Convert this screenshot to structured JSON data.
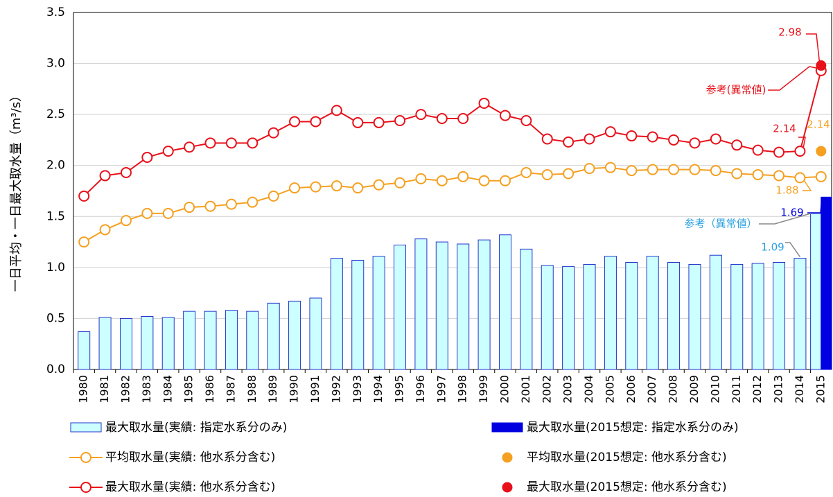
{
  "chart_data": {
    "type": "combo",
    "y_label": "一日平均・一日最大取水量（m³/s）",
    "categories": [
      "1980",
      "1981",
      "1982",
      "1983",
      "1984",
      "1985",
      "1986",
      "1987",
      "1988",
      "1989",
      "1990",
      "1991",
      "1992",
      "1993",
      "1994",
      "1995",
      "1996",
      "1997",
      "1998",
      "1999",
      "2000",
      "2001",
      "2002",
      "2003",
      "2004",
      "2005",
      "2006",
      "2007",
      "2008",
      "2009",
      "2010",
      "2011",
      "2012",
      "2013",
      "2014",
      "2015"
    ],
    "ylim": [
      0,
      3.5
    ],
    "yticks": [
      {
        "value": 0,
        "label": "0.0"
      },
      0.5,
      {
        "value": 1,
        "label": "1.0"
      },
      1.5,
      {
        "value": 2,
        "label": "2.0"
      },
      2.5,
      {
        "value": 3,
        "label": "3.0"
      },
      3.5
    ],
    "grid": true,
    "series": [
      {
        "name": "最大取水量(実績: 指定水系分のみ)",
        "type": "bar",
        "color": "#ccffff",
        "stroke": "#2233cc",
        "values": [
          0.37,
          0.51,
          0.5,
          0.52,
          0.51,
          0.57,
          0.57,
          0.58,
          0.57,
          0.65,
          0.67,
          0.7,
          1.09,
          1.07,
          1.11,
          1.22,
          1.28,
          1.25,
          1.23,
          1.27,
          1.32,
          1.18,
          1.02,
          1.01,
          1.03,
          1.11,
          1.05,
          1.11,
          1.05,
          1.03,
          1.12,
          1.03,
          1.04,
          1.05,
          1.09,
          1.53
        ]
      },
      {
        "name": "最大取水量(2015想定: 指定水系分のみ)",
        "type": "bar",
        "color": "#0000e0",
        "stroke": "#0000e0",
        "values": [
          null,
          null,
          null,
          null,
          null,
          null,
          null,
          null,
          null,
          null,
          null,
          null,
          null,
          null,
          null,
          null,
          null,
          null,
          null,
          null,
          null,
          null,
          null,
          null,
          null,
          null,
          null,
          null,
          null,
          null,
          null,
          null,
          null,
          null,
          null,
          1.69
        ]
      },
      {
        "name": "平均取水量(実績: 他水系分含む)",
        "type": "line",
        "color": "#f5a020",
        "values": [
          1.25,
          1.37,
          1.46,
          1.53,
          1.53,
          1.59,
          1.6,
          1.62,
          1.64,
          1.7,
          1.78,
          1.79,
          1.8,
          1.78,
          1.81,
          1.83,
          1.87,
          1.85,
          1.89,
          1.85,
          1.85,
          1.93,
          1.91,
          1.92,
          1.97,
          1.98,
          1.95,
          1.96,
          1.96,
          1.96,
          1.95,
          1.92,
          1.91,
          1.9,
          1.88,
          1.89
        ]
      },
      {
        "name": "平均取水量(2015想定: 他水系分含む)",
        "type": "scatter",
        "color": "#f5a020",
        "values": [
          null,
          null,
          null,
          null,
          null,
          null,
          null,
          null,
          null,
          null,
          null,
          null,
          null,
          null,
          null,
          null,
          null,
          null,
          null,
          null,
          null,
          null,
          null,
          null,
          null,
          null,
          null,
          null,
          null,
          null,
          null,
          null,
          null,
          null,
          null,
          2.14
        ]
      },
      {
        "name": "最大取水量(実績: 他水系分含む)",
        "type": "line",
        "color": "#e8101a",
        "values": [
          1.7,
          1.9,
          1.93,
          2.08,
          2.14,
          2.18,
          2.22,
          2.22,
          2.22,
          2.32,
          2.43,
          2.43,
          2.54,
          2.42,
          2.42,
          2.44,
          2.5,
          2.46,
          2.46,
          2.61,
          2.49,
          2.44,
          2.26,
          2.23,
          2.26,
          2.33,
          2.29,
          2.28,
          2.25,
          2.22,
          2.26,
          2.2,
          2.15,
          2.13,
          2.14,
          2.93
        ]
      },
      {
        "name": "最大取水量(2015想定: 他水系分含む)",
        "type": "scatter",
        "color": "#e8101a",
        "values": [
          null,
          null,
          null,
          null,
          null,
          null,
          null,
          null,
          null,
          null,
          null,
          null,
          null,
          null,
          null,
          null,
          null,
          null,
          null,
          null,
          null,
          null,
          null,
          null,
          null,
          null,
          null,
          null,
          null,
          null,
          null,
          null,
          null,
          null,
          null,
          2.98
        ]
      }
    ],
    "annotations": [
      {
        "text": "参考(異常値)",
        "color": "#e8101a"
      },
      {
        "text": "参考（異常値）",
        "color": "#2aa0e0"
      }
    ]
  }
}
